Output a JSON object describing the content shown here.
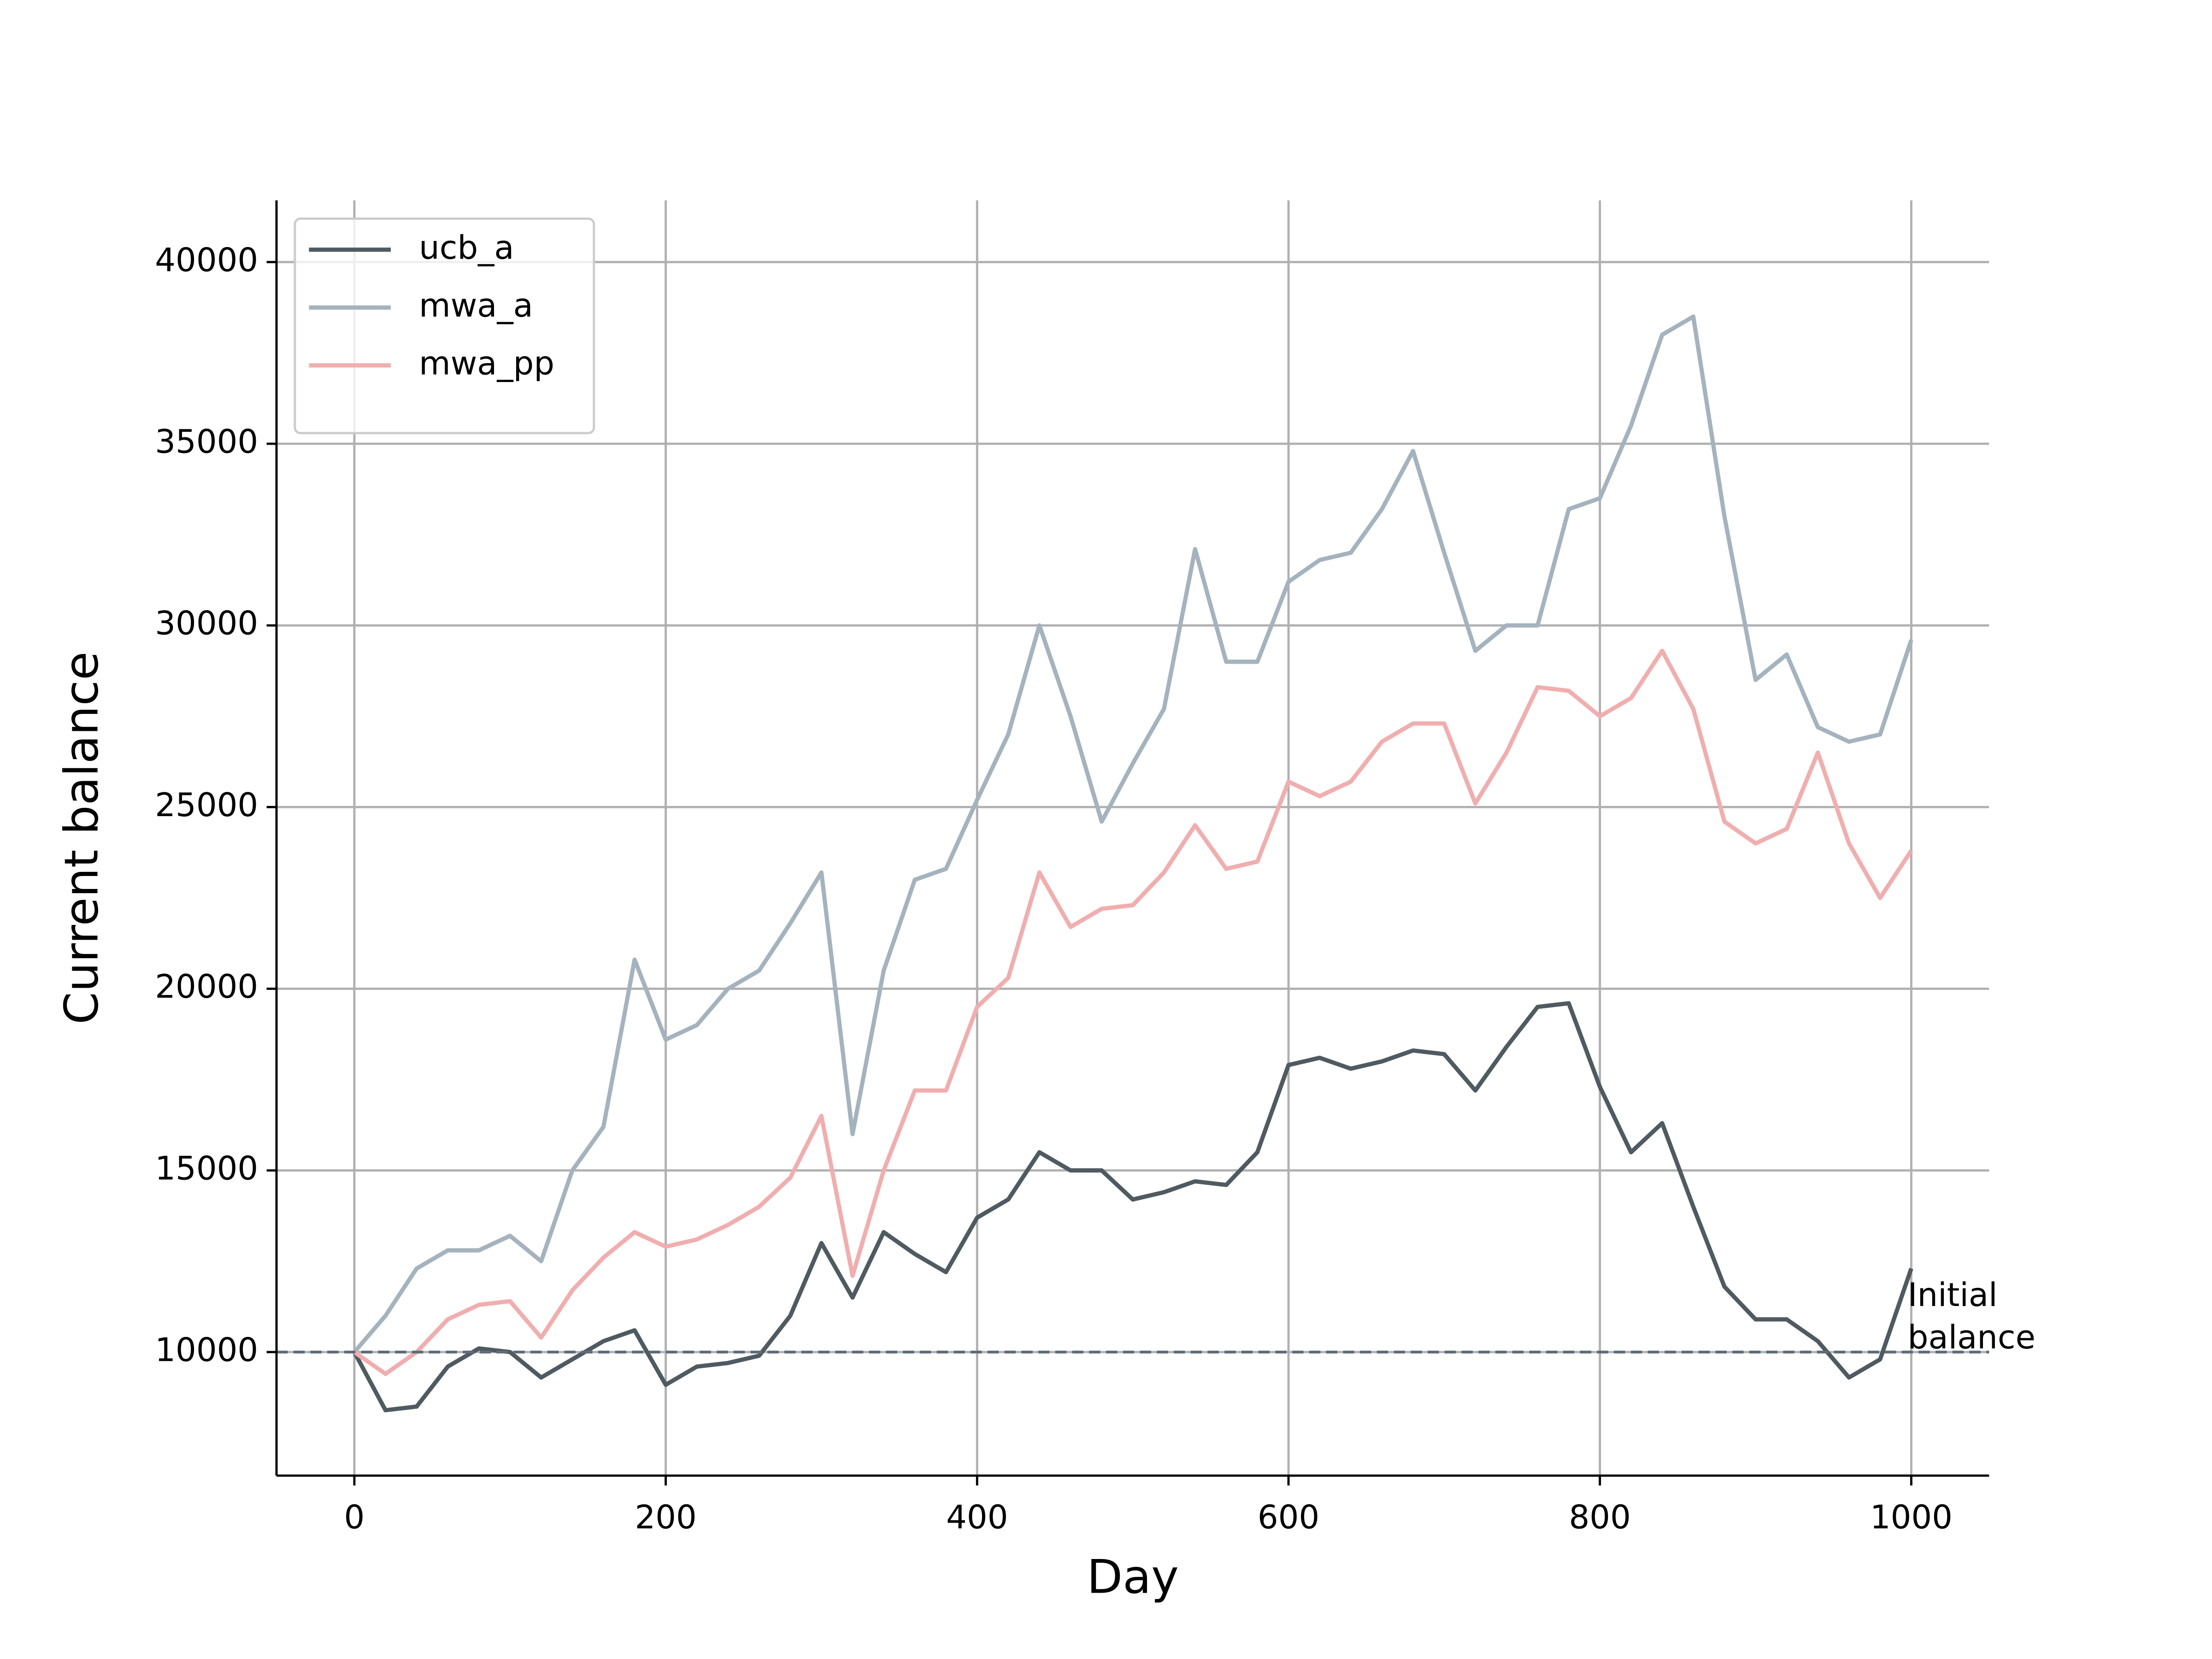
{
  "chart_data": {
    "type": "line",
    "x_label": "Day",
    "y_label": "Current balance",
    "x": [
      0,
      20,
      40,
      60,
      80,
      100,
      120,
      140,
      160,
      180,
      200,
      220,
      240,
      260,
      280,
      300,
      320,
      340,
      360,
      380,
      400,
      420,
      440,
      460,
      480,
      500,
      520,
      540,
      560,
      580,
      600,
      620,
      640,
      660,
      680,
      700,
      720,
      740,
      760,
      780,
      800,
      820,
      840,
      860,
      880,
      900,
      920,
      940,
      960,
      980,
      1000
    ],
    "series": [
      {
        "name": "ucb_a",
        "color": "#4f5a61",
        "values": [
          10000,
          8400,
          8500,
          9600,
          10100,
          10000,
          9300,
          9800,
          10300,
          10600,
          9100,
          9600,
          9700,
          9900,
          11000,
          13000,
          11500,
          13300,
          12700,
          12200,
          13700,
          14200,
          15500,
          15000,
          15000,
          14200,
          14400,
          14700,
          14600,
          15500,
          17900,
          18100,
          17800,
          18000,
          18300,
          18200,
          17200,
          18400,
          19500,
          19600,
          17300,
          15500,
          16300,
          14000,
          11800,
          10900,
          10900,
          10300,
          9300,
          9800,
          12300
        ]
      },
      {
        "name": "mwa_a",
        "color": "#a4b3bd",
        "values": [
          10000,
          11000,
          12300,
          12800,
          12800,
          13200,
          12500,
          15000,
          16200,
          20800,
          18600,
          19000,
          20000,
          20500,
          21800,
          23200,
          16000,
          20500,
          23000,
          23300,
          25200,
          27000,
          30000,
          27500,
          24600,
          26200,
          27700,
          32100,
          29000,
          29000,
          31200,
          31800,
          32000,
          33200,
          34800,
          32000,
          29300,
          30000,
          30000,
          33200,
          33500,
          35500,
          38000,
          38500,
          33000,
          28500,
          29200,
          27200,
          26800,
          27000,
          29600
        ]
      },
      {
        "name": "mwa_pp",
        "color": "#f0aeae",
        "values": [
          10000,
          9400,
          10000,
          10900,
          11300,
          11400,
          10400,
          11700,
          12600,
          13300,
          12900,
          13100,
          13500,
          14000,
          14800,
          16500,
          12100,
          15000,
          17200,
          17200,
          19500,
          20300,
          23200,
          21700,
          22200,
          22300,
          23200,
          24500,
          23300,
          23500,
          25700,
          25300,
          25700,
          26800,
          27300,
          27300,
          25100,
          26500,
          28300,
          28200,
          27500,
          28000,
          29300,
          27700,
          24600,
          24000,
          24400,
          26500,
          24000,
          22500,
          23800
        ]
      }
    ],
    "hline": {
      "value": 10000,
      "color": "#5f6e78",
      "label_lines": [
        "Initial",
        "balance"
      ]
    },
    "xlim": [
      -50,
      1050
    ],
    "xticks": [
      0,
      200,
      400,
      600,
      800,
      1000
    ],
    "ylim": [
      6600,
      41700
    ],
    "yticks": [
      10000,
      15000,
      20000,
      25000,
      30000,
      35000,
      40000
    ],
    "grid": true,
    "legend": "upper-left"
  }
}
